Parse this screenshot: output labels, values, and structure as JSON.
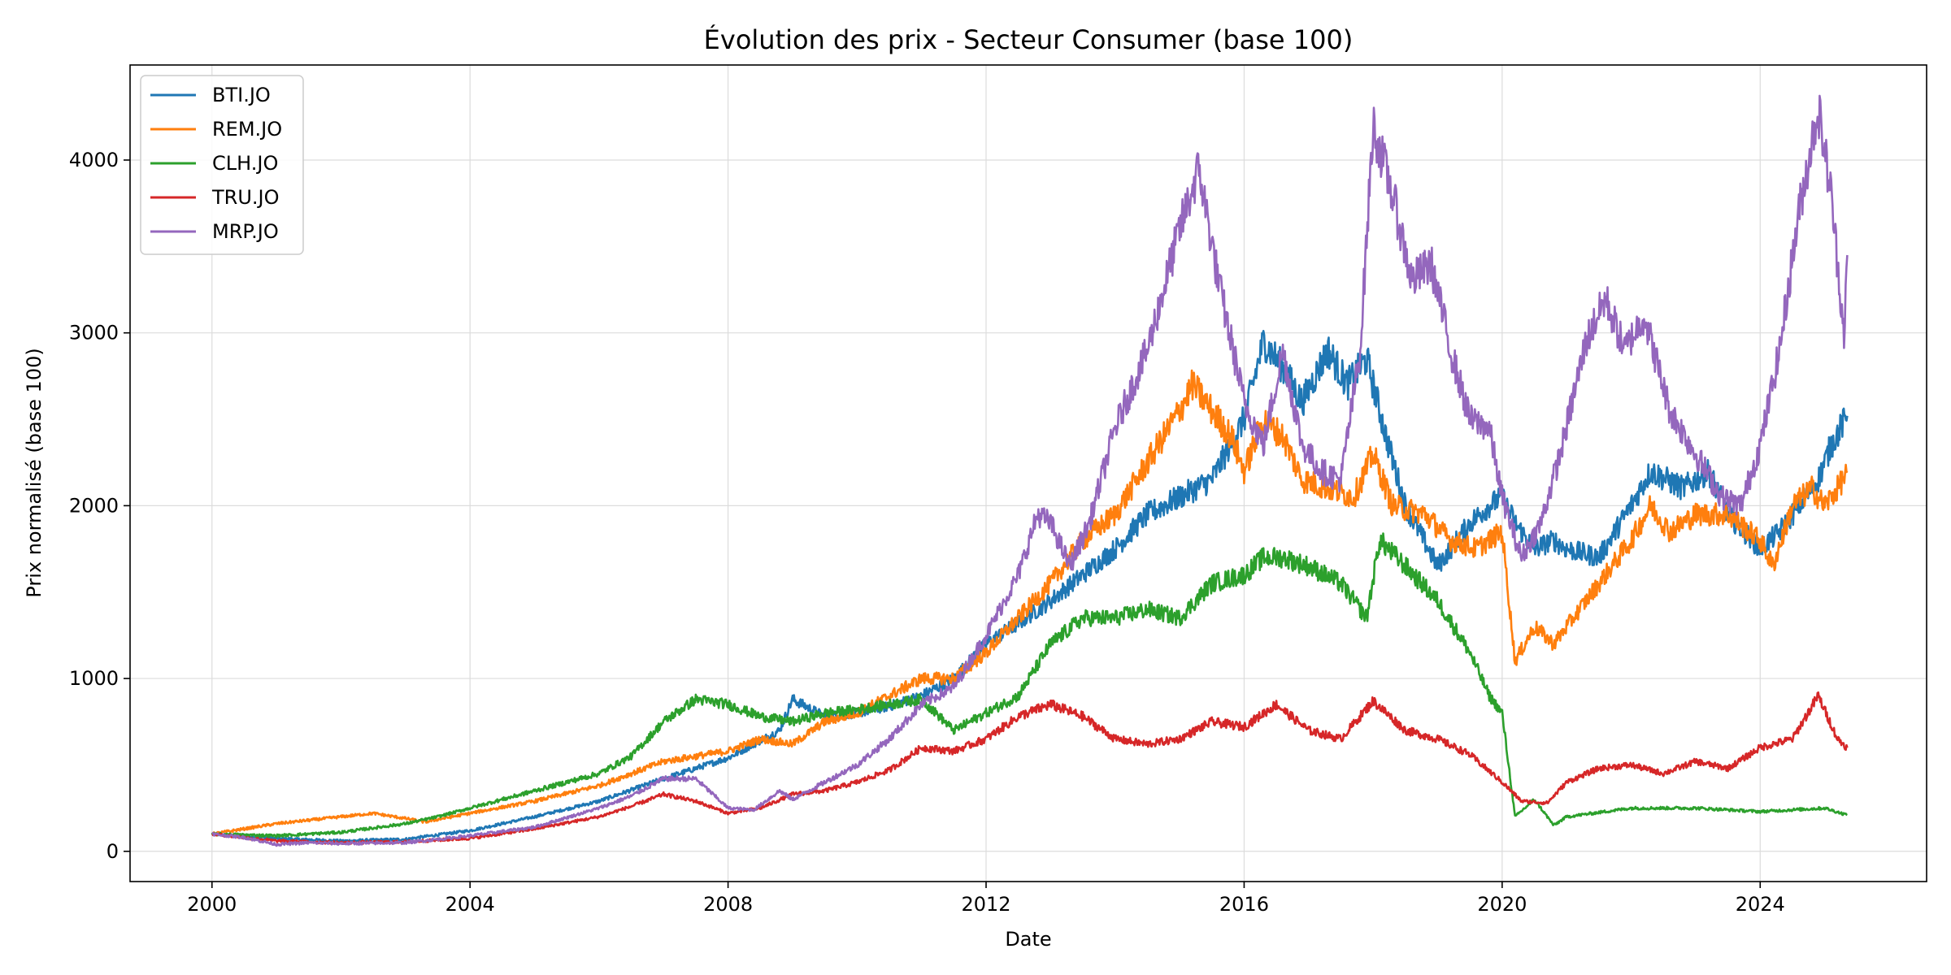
{
  "chart_data": {
    "type": "line",
    "title": "Évolution des prix - Secteur Consumer (base 100)",
    "xlabel": "Date",
    "ylabel": "Prix normalisé (base 100)",
    "xlim": [
      1998.73,
      2026.58
    ],
    "ylim": [
      -175,
      4550
    ],
    "x_ticks": [
      2000,
      2004,
      2008,
      2012,
      2016,
      2020,
      2024
    ],
    "x_tick_labels": [
      "2000",
      "2004",
      "2008",
      "2012",
      "2016",
      "2020",
      "2024"
    ],
    "y_ticks": [
      0,
      1000,
      2000,
      3000,
      4000
    ],
    "y_tick_labels": [
      "0",
      "1000",
      "2000",
      "3000",
      "4000"
    ],
    "grid": true,
    "legend_position": "top-left",
    "series": [
      {
        "name": "BTI.JO",
        "color": "#1f77b4",
        "points": [
          [
            2000.0,
            100
          ],
          [
            2001.0,
            75
          ],
          [
            2002.0,
            60
          ],
          [
            2003.0,
            70
          ],
          [
            2004.0,
            120
          ],
          [
            2005.0,
            200
          ],
          [
            2006.0,
            290
          ],
          [
            2007.0,
            420
          ],
          [
            2008.0,
            540
          ],
          [
            2008.8,
            700
          ],
          [
            2009.0,
            880
          ],
          [
            2009.5,
            780
          ],
          [
            2010.0,
            800
          ],
          [
            2010.5,
            840
          ],
          [
            2011.0,
            900
          ],
          [
            2011.5,
            1000
          ],
          [
            2012.0,
            1200
          ],
          [
            2012.5,
            1320
          ],
          [
            2013.0,
            1450
          ],
          [
            2013.5,
            1600
          ],
          [
            2014.0,
            1750
          ],
          [
            2014.5,
            1950
          ],
          [
            2015.0,
            2050
          ],
          [
            2015.5,
            2150
          ],
          [
            2016.0,
            2500
          ],
          [
            2016.3,
            2950
          ],
          [
            2016.6,
            2800
          ],
          [
            2016.9,
            2600
          ],
          [
            2017.3,
            2900
          ],
          [
            2017.6,
            2700
          ],
          [
            2017.9,
            2850
          ],
          [
            2018.2,
            2400
          ],
          [
            2018.5,
            2000
          ],
          [
            2019.0,
            1650
          ],
          [
            2019.5,
            1900
          ],
          [
            2019.8,
            2000
          ],
          [
            2020.0,
            2050
          ],
          [
            2020.2,
            1900
          ],
          [
            2020.5,
            1750
          ],
          [
            2020.8,
            1800
          ],
          [
            2021.0,
            1750
          ],
          [
            2021.5,
            1700
          ],
          [
            2022.0,
            2000
          ],
          [
            2022.3,
            2200
          ],
          [
            2022.8,
            2100
          ],
          [
            2023.2,
            2200
          ],
          [
            2023.5,
            1950
          ],
          [
            2024.0,
            1750
          ],
          [
            2024.3,
            1850
          ],
          [
            2024.6,
            2000
          ],
          [
            2024.9,
            2150
          ],
          [
            2025.1,
            2350
          ],
          [
            2025.35,
            2520
          ]
        ]
      },
      {
        "name": "REM.JO",
        "color": "#ff7f0e",
        "points": [
          [
            2000.0,
            100
          ],
          [
            2000.5,
            130
          ],
          [
            2001.0,
            160
          ],
          [
            2002.0,
            200
          ],
          [
            2002.5,
            220
          ],
          [
            2003.0,
            190
          ],
          [
            2003.3,
            170
          ],
          [
            2004.0,
            220
          ],
          [
            2005.0,
            290
          ],
          [
            2006.0,
            380
          ],
          [
            2007.0,
            520
          ],
          [
            2008.0,
            580
          ],
          [
            2008.5,
            650
          ],
          [
            2009.0,
            620
          ],
          [
            2009.5,
            750
          ],
          [
            2010.0,
            800
          ],
          [
            2010.5,
            900
          ],
          [
            2011.0,
            1000
          ],
          [
            2011.5,
            1000
          ],
          [
            2012.0,
            1150
          ],
          [
            2012.5,
            1350
          ],
          [
            2013.0,
            1550
          ],
          [
            2013.5,
            1800
          ],
          [
            2014.0,
            1950
          ],
          [
            2014.5,
            2250
          ],
          [
            2015.0,
            2550
          ],
          [
            2015.2,
            2700
          ],
          [
            2015.5,
            2550
          ],
          [
            2015.8,
            2400
          ],
          [
            2016.0,
            2200
          ],
          [
            2016.3,
            2500
          ],
          [
            2016.6,
            2400
          ],
          [
            2016.9,
            2150
          ],
          [
            2017.3,
            2100
          ],
          [
            2017.7,
            2050
          ],
          [
            2018.0,
            2300
          ],
          [
            2018.3,
            2000
          ],
          [
            2018.8,
            1950
          ],
          [
            2019.2,
            1800
          ],
          [
            2019.6,
            1750
          ],
          [
            2020.0,
            1850
          ],
          [
            2020.2,
            1100
          ],
          [
            2020.5,
            1300
          ],
          [
            2020.8,
            1200
          ],
          [
            2021.0,
            1300
          ],
          [
            2021.5,
            1550
          ],
          [
            2022.0,
            1800
          ],
          [
            2022.3,
            2000
          ],
          [
            2022.6,
            1850
          ],
          [
            2023.0,
            1950
          ],
          [
            2023.5,
            1950
          ],
          [
            2024.0,
            1800
          ],
          [
            2024.2,
            1650
          ],
          [
            2024.5,
            2000
          ],
          [
            2024.8,
            2100
          ],
          [
            2025.0,
            2000
          ],
          [
            2025.2,
            2100
          ],
          [
            2025.35,
            2200
          ]
        ]
      },
      {
        "name": "CLH.JO",
        "color": "#2ca02c",
        "points": [
          [
            2000.0,
            100
          ],
          [
            2001.0,
            90
          ],
          [
            2002.0,
            110
          ],
          [
            2003.0,
            160
          ],
          [
            2003.5,
            200
          ],
          [
            2004.0,
            250
          ],
          [
            2005.0,
            350
          ],
          [
            2006.0,
            450
          ],
          [
            2006.5,
            550
          ],
          [
            2007.0,
            750
          ],
          [
            2007.5,
            880
          ],
          [
            2008.0,
            850
          ],
          [
            2008.5,
            780
          ],
          [
            2009.0,
            750
          ],
          [
            2009.5,
            800
          ],
          [
            2010.0,
            820
          ],
          [
            2010.5,
            850
          ],
          [
            2011.0,
            880
          ],
          [
            2011.5,
            700
          ],
          [
            2012.0,
            800
          ],
          [
            2012.5,
            900
          ],
          [
            2013.0,
            1200
          ],
          [
            2013.5,
            1350
          ],
          [
            2014.0,
            1350
          ],
          [
            2014.5,
            1400
          ],
          [
            2015.0,
            1350
          ],
          [
            2015.5,
            1550
          ],
          [
            2016.0,
            1600
          ],
          [
            2016.3,
            1700
          ],
          [
            2016.6,
            1700
          ],
          [
            2017.0,
            1650
          ],
          [
            2017.5,
            1550
          ],
          [
            2017.9,
            1350
          ],
          [
            2018.1,
            1800
          ],
          [
            2018.5,
            1650
          ],
          [
            2019.0,
            1450
          ],
          [
            2019.5,
            1150
          ],
          [
            2019.8,
            900
          ],
          [
            2020.0,
            800
          ],
          [
            2020.2,
            200
          ],
          [
            2020.5,
            300
          ],
          [
            2020.8,
            150
          ],
          [
            2021.0,
            200
          ],
          [
            2022.0,
            250
          ],
          [
            2023.0,
            250
          ],
          [
            2024.0,
            230
          ],
          [
            2025.0,
            250
          ],
          [
            2025.35,
            210
          ]
        ]
      },
      {
        "name": "TRU.JO",
        "color": "#d62728",
        "points": [
          [
            2000.0,
            100
          ],
          [
            2001.0,
            60
          ],
          [
            2002.0,
            50
          ],
          [
            2003.0,
            55
          ],
          [
            2004.0,
            75
          ],
          [
            2005.0,
            130
          ],
          [
            2006.0,
            200
          ],
          [
            2006.5,
            260
          ],
          [
            2007.0,
            330
          ],
          [
            2007.5,
            290
          ],
          [
            2008.0,
            220
          ],
          [
            2008.5,
            250
          ],
          [
            2009.0,
            330
          ],
          [
            2009.5,
            350
          ],
          [
            2010.0,
            400
          ],
          [
            2010.5,
            470
          ],
          [
            2011.0,
            600
          ],
          [
            2011.5,
            580
          ],
          [
            2012.0,
            650
          ],
          [
            2012.5,
            780
          ],
          [
            2013.0,
            850
          ],
          [
            2013.5,
            780
          ],
          [
            2014.0,
            650
          ],
          [
            2014.5,
            620
          ],
          [
            2015.0,
            650
          ],
          [
            2015.5,
            750
          ],
          [
            2016.0,
            720
          ],
          [
            2016.5,
            850
          ],
          [
            2017.0,
            700
          ],
          [
            2017.5,
            650
          ],
          [
            2018.0,
            870
          ],
          [
            2018.5,
            700
          ],
          [
            2019.0,
            650
          ],
          [
            2019.5,
            560
          ],
          [
            2020.0,
            400
          ],
          [
            2020.3,
            290
          ],
          [
            2020.7,
            280
          ],
          [
            2021.0,
            400
          ],
          [
            2021.5,
            480
          ],
          [
            2022.0,
            500
          ],
          [
            2022.5,
            450
          ],
          [
            2023.0,
            520
          ],
          [
            2023.5,
            480
          ],
          [
            2024.0,
            600
          ],
          [
            2024.5,
            650
          ],
          [
            2024.9,
            900
          ],
          [
            2025.2,
            650
          ],
          [
            2025.35,
            600
          ]
        ]
      },
      {
        "name": "MRP.JO",
        "color": "#9467bd",
        "points": [
          [
            2000.0,
            100
          ],
          [
            2000.5,
            80
          ],
          [
            2001.0,
            40
          ],
          [
            2001.5,
            50
          ],
          [
            2002.0,
            45
          ],
          [
            2003.0,
            50
          ],
          [
            2004.0,
            90
          ],
          [
            2005.0,
            140
          ],
          [
            2006.0,
            250
          ],
          [
            2006.5,
            320
          ],
          [
            2007.0,
            420
          ],
          [
            2007.5,
            420
          ],
          [
            2008.0,
            250
          ],
          [
            2008.4,
            240
          ],
          [
            2008.8,
            350
          ],
          [
            2009.0,
            300
          ],
          [
            2009.5,
            400
          ],
          [
            2010.0,
            500
          ],
          [
            2010.5,
            650
          ],
          [
            2011.0,
            850
          ],
          [
            2011.5,
            950
          ],
          [
            2012.0,
            1250
          ],
          [
            2012.5,
            1600
          ],
          [
            2012.8,
            1950
          ],
          [
            2013.0,
            1900
          ],
          [
            2013.3,
            1650
          ],
          [
            2013.6,
            1900
          ],
          [
            2014.0,
            2450
          ],
          [
            2014.5,
            2900
          ],
          [
            2015.0,
            3600
          ],
          [
            2015.3,
            3950
          ],
          [
            2015.6,
            3300
          ],
          [
            2016.0,
            2600
          ],
          [
            2016.3,
            2350
          ],
          [
            2016.6,
            2900
          ],
          [
            2016.9,
            2350
          ],
          [
            2017.2,
            2200
          ],
          [
            2017.5,
            2150
          ],
          [
            2017.8,
            2900
          ],
          [
            2018.0,
            4200
          ],
          [
            2018.3,
            3800
          ],
          [
            2018.6,
            3300
          ],
          [
            2018.9,
            3400
          ],
          [
            2019.2,
            2900
          ],
          [
            2019.5,
            2500
          ],
          [
            2019.8,
            2450
          ],
          [
            2020.0,
            2050
          ],
          [
            2020.3,
            1700
          ],
          [
            2020.6,
            1900
          ],
          [
            2020.9,
            2300
          ],
          [
            2021.3,
            2950
          ],
          [
            2021.6,
            3200
          ],
          [
            2021.9,
            2900
          ],
          [
            2022.2,
            3100
          ],
          [
            2022.6,
            2550
          ],
          [
            2023.0,
            2300
          ],
          [
            2023.4,
            2050
          ],
          [
            2023.7,
            2000
          ],
          [
            2024.0,
            2350
          ],
          [
            2024.3,
            2900
          ],
          [
            2024.6,
            3700
          ],
          [
            2024.9,
            4300
          ],
          [
            2025.1,
            3800
          ],
          [
            2025.3,
            3000
          ],
          [
            2025.35,
            3450
          ]
        ]
      }
    ]
  }
}
